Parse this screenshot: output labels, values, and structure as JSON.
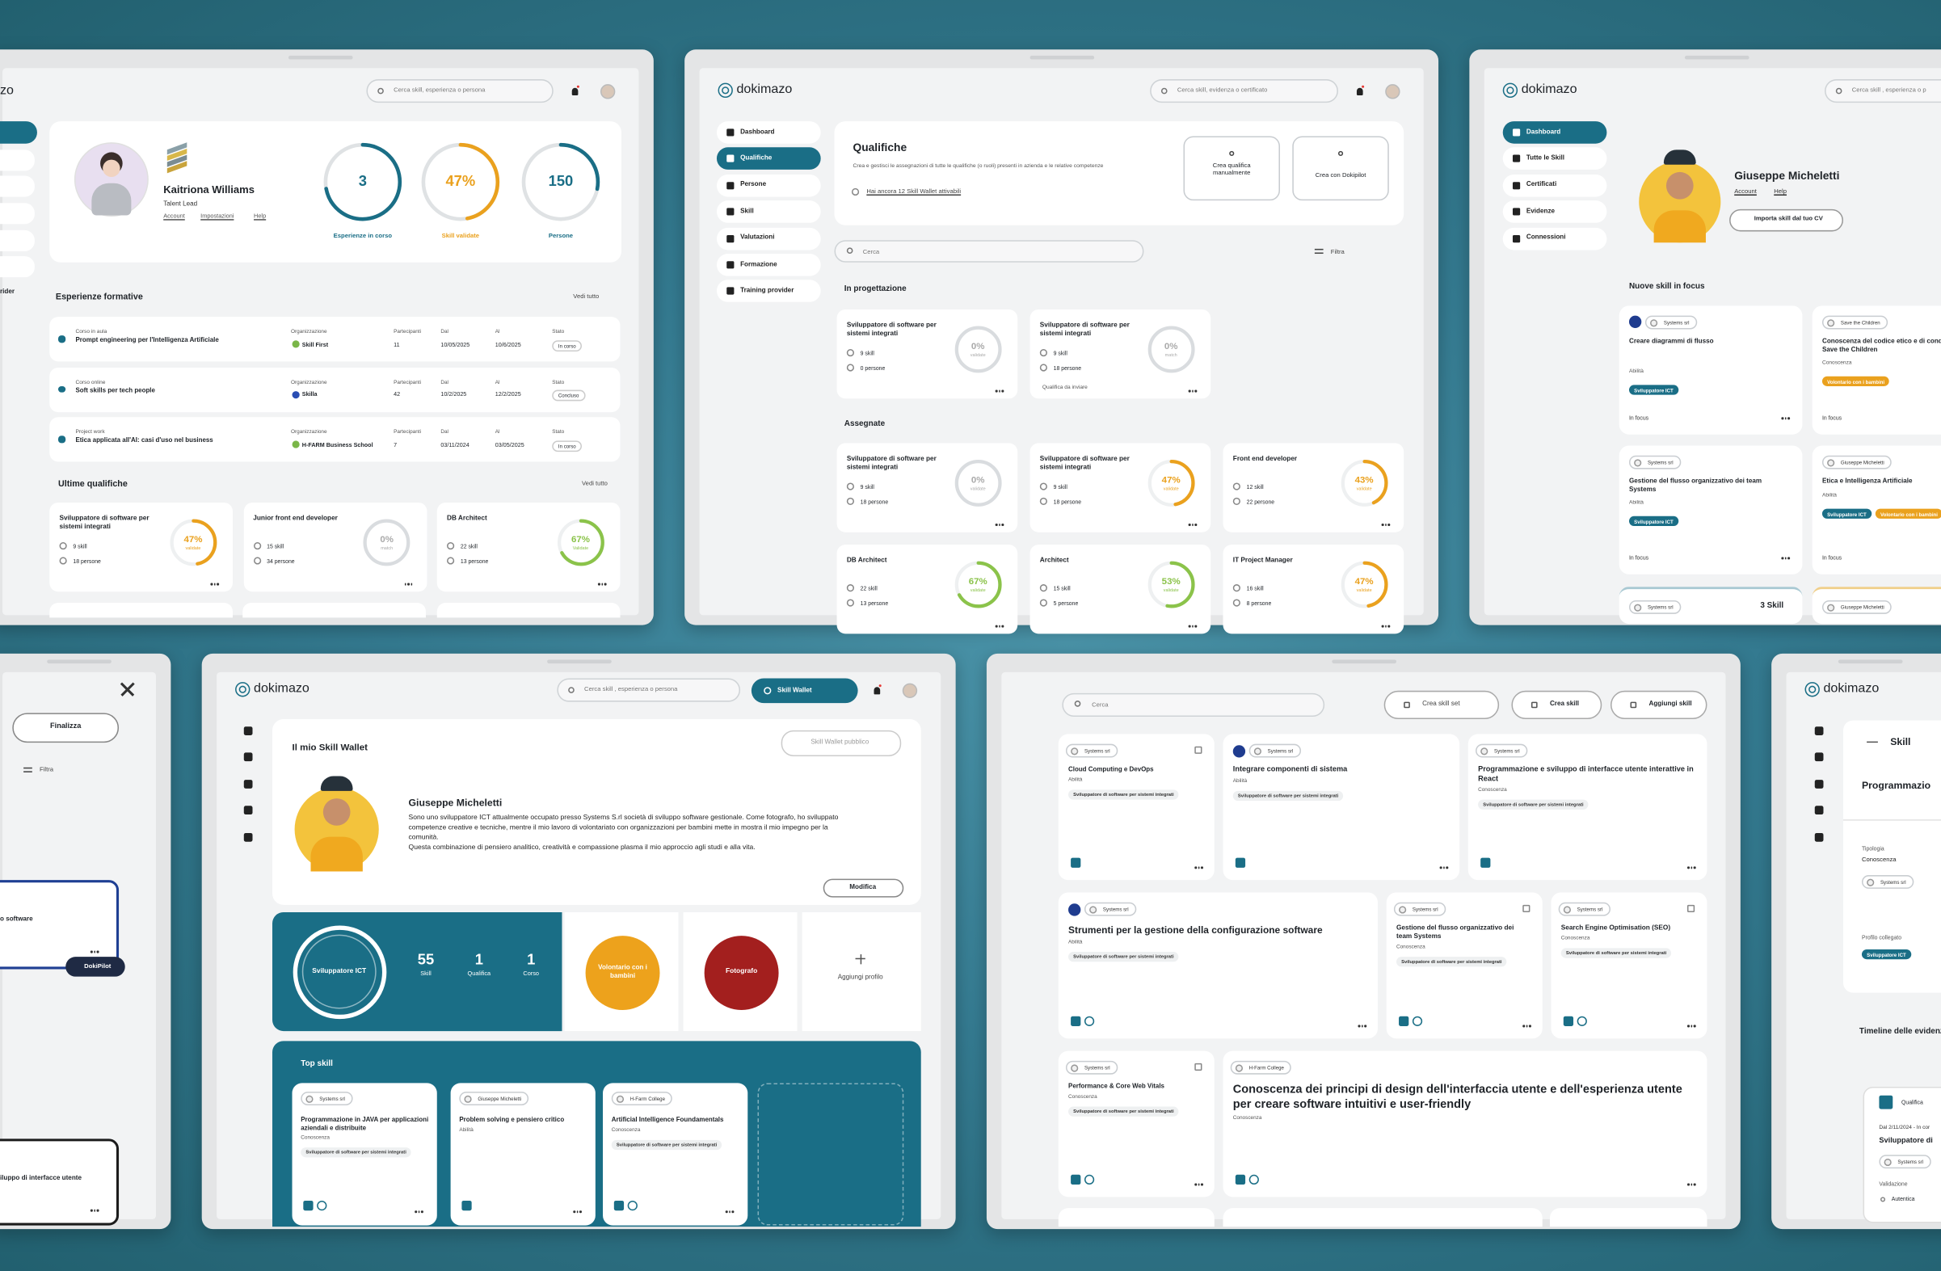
{
  "brand": "dokimazo",
  "dashboard": {
    "brand_cut": "zo",
    "search": "Cerca skill, esperienza o persona",
    "menu_cut": "rider",
    "user": {
      "name": "Kaitriona Williams",
      "role": "Talent Lead",
      "links": [
        "Account",
        "Impostazioni",
        "Help"
      ]
    },
    "stats": [
      {
        "value": "3",
        "label": "Esperienze in corso"
      },
      {
        "value": "47%",
        "label": "Skill validate"
      },
      {
        "value": "150",
        "label": "Persone"
      }
    ],
    "experiences": {
      "title": "Esperienze formative",
      "link": "Vedi tutto",
      "columns": [
        "Organizzazione",
        "Partecipanti",
        "Dal",
        "Al",
        "Stato"
      ],
      "rows": [
        {
          "type": "Corso in aula",
          "name": "Prompt engineering per l'Intelligenza Artificiale",
          "org": "Skill First",
          "participants": "11",
          "from": "10/05/2025",
          "to": "10/6/2025",
          "status": "In corso"
        },
        {
          "type": "Corso online",
          "name": "Soft skills per tech people",
          "org": "Skilla",
          "participants": "42",
          "from": "10/2/2025",
          "to": "12/2/2025",
          "status": "Concluso"
        },
        {
          "type": "Project work",
          "name": "Etica applicata all'AI: casi d'uso nel business",
          "org": "H-FARM Business School",
          "participants": "7",
          "from": "03/11/2024",
          "to": "03/05/2025",
          "status": "In corso"
        }
      ]
    },
    "qualifications": {
      "title": "Ultime qualifiche",
      "link": "Vedi tutto",
      "cards": [
        {
          "name": "Sviluppatore di software per sistemi integrati",
          "skills": "9 skill",
          "people": "18 persone",
          "percent": "47%",
          "caption": "validate"
        },
        {
          "name": "Junior front end developer",
          "skills": "15 skill",
          "people": "34 persone",
          "percent": "0%",
          "caption": "match"
        },
        {
          "name": "DB Architect",
          "skills": "22 skill",
          "people": "13 persone",
          "percent": "67%",
          "caption": "Validate"
        }
      ]
    }
  },
  "qualifiche": {
    "search": "Cerca skill, evidenza o certificato",
    "menu": [
      "Dashboard",
      "Qualifiche",
      "Persone",
      "Skill",
      "Valutazioni",
      "Formazione",
      "Training provider"
    ],
    "title": "Qualifiche",
    "description": "Crea e gestisci le assegnazioni di tutte le qualifiche (o ruoli) presenti in azienda e le relative competenze",
    "notice": "Hai ancora 12 Skill Wallet attivabili",
    "actions": [
      "Crea qualifica manualmente",
      "Crea con Dokipilot"
    ],
    "search_box": "Cerca",
    "filter": "Filtra",
    "sections": [
      {
        "title": "In progettazione",
        "cards": [
          {
            "name": "Sviluppatore di software per sistemi integrati",
            "skills": "9 skill",
            "people": "0 persone",
            "percent": "0%",
            "caption": "validate"
          },
          {
            "name": "Sviluppatore di software per sistemi integrati",
            "skills": "9 skill",
            "people": "18 persone",
            "percent": "0%",
            "caption": "match",
            "note": "Qualifica da inviare"
          }
        ]
      },
      {
        "title": "Assegnate",
        "cards": [
          {
            "name": "Sviluppatore di software per sistemi integrati",
            "skills": "9 skill",
            "people": "18 persone",
            "percent": "0%",
            "caption": "validate"
          },
          {
            "name": "Sviluppatore di software per sistemi integrati",
            "skills": "9 skill",
            "people": "18 persone",
            "percent": "47%",
            "caption": "validate"
          },
          {
            "name": "Front end developer",
            "skills": "12 skill",
            "people": "22 persone",
            "percent": "43%",
            "caption": "validate"
          },
          {
            "name": "DB Architect",
            "skills": "22 skill",
            "people": "13 persone",
            "percent": "67%",
            "caption": "validate"
          },
          {
            "name": "Architect",
            "skills": "15 skill",
            "people": "5 persone",
            "percent": "53%",
            "caption": "validate"
          },
          {
            "name": "IT Project Manager",
            "skills": "16 skill",
            "people": "8 persone",
            "percent": "47%",
            "caption": "validate"
          }
        ]
      }
    ]
  },
  "profile": {
    "search": "Cerca skill , esperienza o p",
    "menu": [
      "Dashboard",
      "Tutte le Skill",
      "Certificati",
      "Evidenze",
      "Connessioni"
    ],
    "name": "Giuseppe Micheletti",
    "links": [
      "Account",
      "Help"
    ],
    "import": "Importa skill dal tuo CV",
    "focus_title": "Nuove skill in focus",
    "cards": [
      {
        "org": "Systems srl",
        "title": "Creare diagrammi di flusso",
        "kind": "Abilità",
        "tags": [
          "Sviluppatore ICT"
        ],
        "status": "In focus"
      },
      {
        "org": "Save the Children",
        "title": "Conoscenza del codice etico e di condotta Save the Children",
        "kind": "Conoscenza",
        "tags": [
          "Volontario con i bambini"
        ],
        "status": "In focus"
      },
      {
        "org": "Systems srl",
        "title": "Gestione del flusso organizzativo dei team Systems",
        "kind": "Abilità",
        "tags": [
          "Sviluppatore ICT"
        ],
        "status": "In focus"
      },
      {
        "org": "Giuseppe Micheletti",
        "title": "Etica e Intelligenza Artificiale",
        "kind": "Abilità",
        "tags": [
          "Sviluppatore ICT",
          "Volontario con i bambini"
        ],
        "status": "In focus"
      }
    ],
    "bottom": [
      {
        "org": "Systems srl",
        "count": "3 Skill"
      },
      {
        "org": "Giuseppe Micheletti"
      }
    ]
  },
  "editor": {
    "finalize": "Finalizza",
    "filter": "Filtra",
    "card_cut": "o software",
    "dokipilot": "DokiPilot",
    "card2_cut": "iluppo di interfacce utente"
  },
  "wallet": {
    "search": "Cerca skill , esperienza o persona",
    "wallet_button": "Skill Wallet",
    "title": "Il mio Skill Wallet",
    "public": "Skill Wallet pubblico",
    "name": "Giuseppe Micheletti",
    "bio": [
      "Sono uno sviluppatore ICT attualmente occupato presso Systems S.rl società di sviluppo software gestionale. Come fotografo, ho sviluppato competenze creative e tecniche, mentre il mio lavoro di volontariato con organizzazioni per bambini mette in mostra il mio impegno per la comunità.",
      "Questa combinazione di pensiero analitico, creatività e compassione plasma il mio approccio agli studi e alla vita."
    ],
    "edit": "Modifica",
    "main_profile": {
      "name": "Sviluppatore ICT",
      "stats": [
        {
          "value": "55",
          "label": "Skill"
        },
        {
          "value": "1",
          "label": "Qualifica"
        },
        {
          "value": "1",
          "label": "Corso"
        }
      ]
    },
    "profiles": [
      "Volontario con i bambini",
      "Fotografo"
    ],
    "add_profile": "Aggiungi profilo",
    "top_title": "Top skill",
    "top": [
      {
        "org": "Systems srl",
        "title": "Programmazione in JAVA per applicazioni aziendali e distribuite",
        "kind": "Conoscenza",
        "tag": "Sviluppatore di software per sistemi integrati"
      },
      {
        "org": "Giuseppe Micheletti",
        "title": "Problem solving e pensiero critico",
        "kind": "Abilità"
      },
      {
        "org": "H-Farm College",
        "title": "Artificial Intelligence Foundamentals",
        "kind": "Conoscenza",
        "tag": "Sviluppatore di software per sistemi integrati"
      }
    ]
  },
  "skills": {
    "search": "Cerca",
    "actions": [
      "Crea skill set",
      "Crea skill",
      "Aggiungi skill"
    ],
    "cards": [
      {
        "org": "Systems srl",
        "title": "Cloud Computing e DevOps",
        "kind": "Abilità",
        "tag": "Sviluppatore di software per sistemi integrati"
      },
      {
        "org": "Systems srl",
        "title": "Integrare componenti di sistema",
        "kind": "Abilità",
        "tag": "Sviluppatore di software per sistemi integrati"
      },
      {
        "org": "Systems srl",
        "title": "Programmazione e sviluppo di interfacce utente interattive in React",
        "kind": "Conoscenza",
        "tag": "Sviluppatore di software per sistemi integrati"
      },
      {
        "org": "Systems srl",
        "title": "Strumenti per la gestione della configurazione software",
        "kind": "Abilità",
        "tag": "Sviluppatore di software per sistemi integrati"
      },
      {
        "org": "Systems srl",
        "title": "Gestione del flusso organizzativo dei team Systems",
        "kind": "Conoscenza",
        "tag": "Sviluppatore di software per sistemi integrati"
      },
      {
        "org": "Systems srl",
        "title": "Search Engine Optimisation (SEO)",
        "kind": "Conoscenza",
        "tag": "Sviluppatore di software per sistemi integrati"
      },
      {
        "org": "Systems srl",
        "title": "Performance & Core Web Vitals",
        "kind": "Conoscenza",
        "tag": "Sviluppatore di software per sistemi integrati"
      },
      {
        "org": "H-Farm College",
        "title": "Conoscenza dei principi di design dell'interfaccia utente e dell'esperienza utente per creare software intuitivi e user-friendly",
        "kind": "Conoscenza"
      }
    ]
  },
  "detail": {
    "title": "Skill",
    "skill_cut": "Programmazio",
    "type_label": "Tipologia",
    "type": "Conoscenza",
    "org": "Systems srl",
    "profile_label": "Profilo collegato",
    "profile": "Sviluppatore ICT",
    "timeline": "Timeline delle evidenze",
    "entry": {
      "kind": "Qualifica",
      "period": "Dal 2/11/2024 - In cor",
      "title": "Sviluppatore di",
      "org": "Systems srl",
      "validation_label": "Validazione",
      "validation": "Autentica"
    }
  }
}
